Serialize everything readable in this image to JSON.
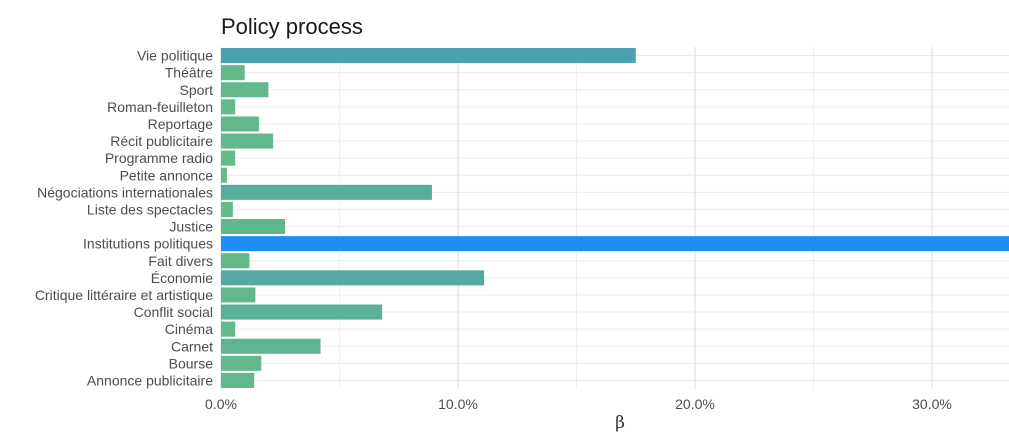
{
  "chart_data": {
    "type": "bar",
    "orientation": "horizontal",
    "title": "Policy process",
    "xlabel": "β",
    "ylabel": "",
    "xlim": [
      0,
      33
    ],
    "x_ticks": [
      0,
      10,
      20,
      30
    ],
    "x_tick_labels": [
      "0.0%",
      "10.0%",
      "20.0%",
      "30.0%"
    ],
    "grid": true,
    "legend": "none",
    "value_unit": "percent",
    "categories": [
      "Vie politique",
      "Théâtre",
      "Sport",
      "Roman-feuilleton",
      "Reportage",
      "Récit publicitaire",
      "Programme radio",
      "Petite annonce",
      "Négociations internationales",
      "Liste des spectacles",
      "Justice",
      "Institutions politiques",
      "Fait divers",
      "Économie",
      "Critique littéraire et artistique",
      "Conflit social",
      "Cinéma",
      "Carnet",
      "Bourse",
      "Annonce publicitaire"
    ],
    "values": [
      17.5,
      1.0,
      2.0,
      0.6,
      1.6,
      2.2,
      0.6,
      0.25,
      8.9,
      0.5,
      2.7,
      33.5,
      1.2,
      11.1,
      1.45,
      6.8,
      0.6,
      4.2,
      1.7,
      1.4
    ],
    "colors": {
      "low": "#66bb87",
      "high": "#1e8ef5",
      "mid": "#4fa4a9"
    }
  }
}
